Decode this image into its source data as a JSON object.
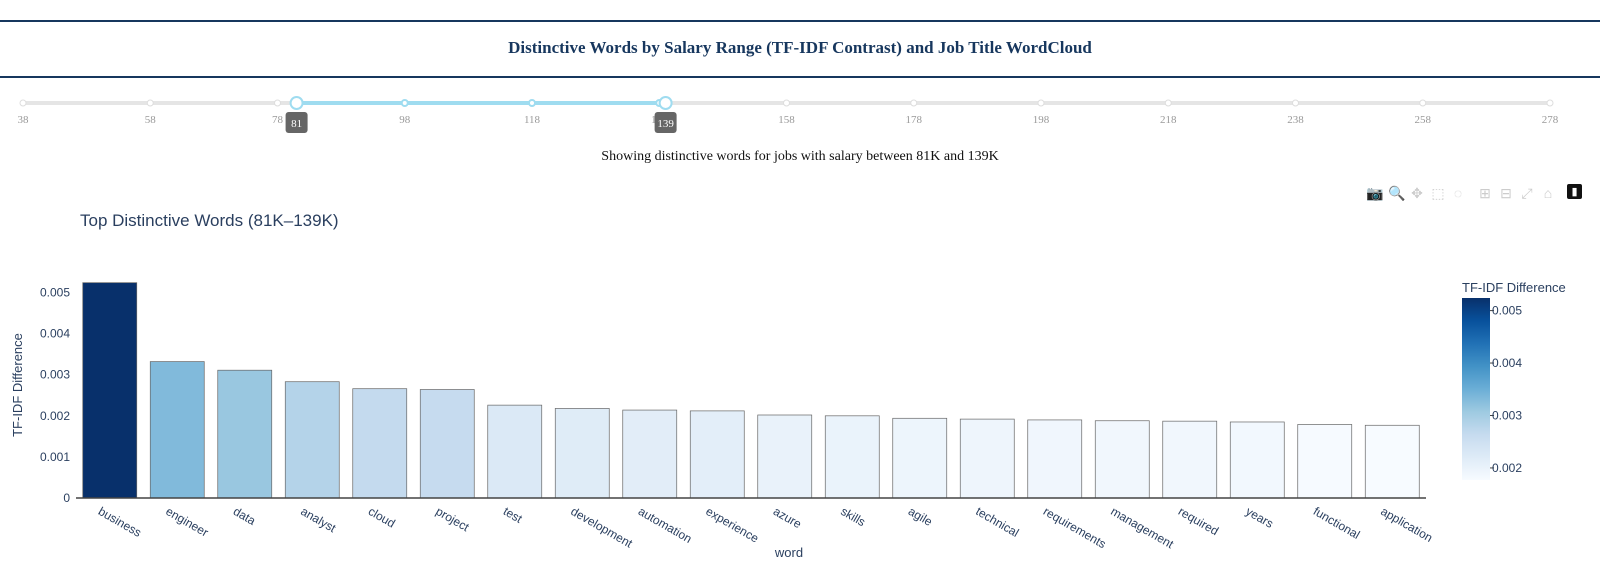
{
  "page_title": "Distinctive Words by Salary Range (TF-IDF Contrast) and Job Title WordCloud",
  "slider": {
    "ticks": [
      "38",
      "58",
      "78",
      "98",
      "118",
      "138",
      "158",
      "178",
      "198",
      "218",
      "238",
      "258",
      "278"
    ],
    "min": 38,
    "max": 278,
    "selected_low": 81,
    "selected_high": 139,
    "low_label": "81",
    "high_label": "139"
  },
  "caption": "Showing distinctive words for jobs with salary between 81K and 139K",
  "modebar": {
    "icons": [
      "camera-icon",
      "zoom-icon",
      "pan-icon",
      "box-select-icon",
      "lasso-icon",
      "zoom-in-icon",
      "zoom-out-icon",
      "autoscale-icon",
      "reset-axes-icon",
      "plotly-logo-icon"
    ]
  },
  "colors": {
    "accent": "#17375e",
    "slider_active": "#9fdcf0",
    "slider_track": "#e5e5e5",
    "axis_text": "#2a3f5f"
  },
  "chart_data": {
    "type": "bar",
    "title": "Top Distinctive Words (81K–139K)",
    "xlabel": "word",
    "ylabel": "TF-IDF Difference",
    "categories": [
      "business",
      "engineer",
      "data",
      "analyst",
      "cloud",
      "project",
      "test",
      "development",
      "automation",
      "experience",
      "azure",
      "skills",
      "agile",
      "technical",
      "requirements",
      "management",
      "required",
      "years",
      "functional",
      "application"
    ],
    "values": [
      0.00524,
      0.00332,
      0.00311,
      0.00283,
      0.00266,
      0.00264,
      0.00226,
      0.00218,
      0.00214,
      0.00212,
      0.00202,
      0.002,
      0.00194,
      0.00192,
      0.0019,
      0.00188,
      0.00187,
      0.00185,
      0.00179,
      0.00177
    ],
    "ylim": [
      0,
      0.0055
    ],
    "yticks": [
      "0",
      "0.001",
      "0.002",
      "0.003",
      "0.004",
      "0.005"
    ],
    "colorbar": {
      "title": "TF-IDF Difference",
      "min": 0.00177,
      "max": 0.00524,
      "ticks": [
        "0.002",
        "0.003",
        "0.004",
        "0.005"
      ],
      "colorscale": [
        "#f7fbff",
        "#deebf7",
        "#c6dbef",
        "#9ecae1",
        "#6baed6",
        "#4292c6",
        "#2171b5",
        "#08519c",
        "#08306b"
      ]
    },
    "grid": false
  }
}
